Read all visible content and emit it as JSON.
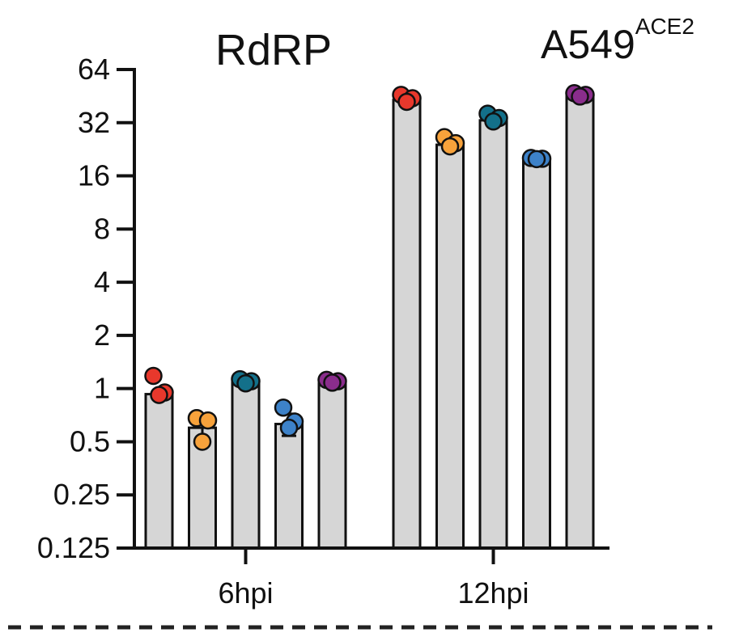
{
  "chart_data": {
    "type": "bar",
    "title": "RdRP",
    "cell_line": {
      "main": "A549",
      "superscript": "ACE2"
    },
    "y_scale": "log2",
    "ylim": [
      0.125,
      64
    ],
    "y_ticks": [
      "64",
      "32",
      "16",
      "8",
      "4",
      "2",
      "1",
      "0.5",
      "0.25",
      "0.125"
    ],
    "y_tick_values": [
      64,
      32,
      16,
      8,
      4,
      2,
      1,
      0.5,
      0.25,
      0.125
    ],
    "groups": [
      {
        "label": "6hpi",
        "bars": [
          {
            "value": 0.93,
            "points": [
              1.18,
              0.95,
              0.92
            ],
            "color": "#e8382c",
            "error": 0
          },
          {
            "value": 0.6,
            "points": [
              0.68,
              0.66,
              0.5
            ],
            "color": "#f7a23b",
            "error": 0.08
          },
          {
            "value": 1.08,
            "points": [
              1.13,
              1.1,
              1.07
            ],
            "color": "#13708a",
            "error": 0
          },
          {
            "value": 0.63,
            "points": [
              0.78,
              0.65,
              0.6
            ],
            "color": "#3d82c9",
            "error": 0.09
          },
          {
            "value": 1.07,
            "points": [
              1.12,
              1.1,
              1.08
            ],
            "color": "#8a2d8c",
            "error": 0
          }
        ]
      },
      {
        "label": "12hpi",
        "bars": [
          {
            "value": 43,
            "points": [
              46,
              44,
              42
            ],
            "color": "#e8382c",
            "error": 0
          },
          {
            "value": 24,
            "points": [
              26.5,
              24.5,
              23.5
            ],
            "color": "#f7a23b",
            "error": 0
          },
          {
            "value": 33,
            "points": [
              36,
              34,
              32.5
            ],
            "color": "#13708a",
            "error": 0
          },
          {
            "value": 20,
            "points": [
              20.2,
              20,
              19.9
            ],
            "color": "#3d82c9",
            "error": 0
          },
          {
            "value": 46,
            "points": [
              47,
              46,
              45
            ],
            "color": "#8a2d8c",
            "error": 0
          }
        ]
      }
    ],
    "bar_fill": "#d6d6d6",
    "grid": false,
    "legend": "none"
  }
}
